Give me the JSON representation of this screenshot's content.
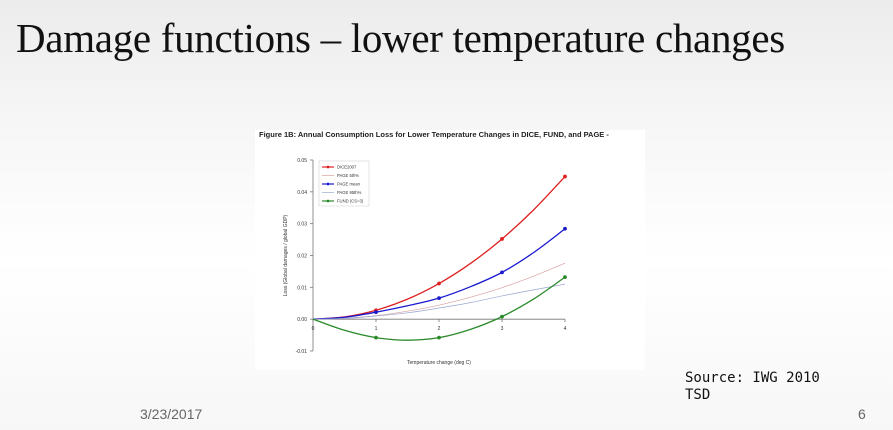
{
  "slide": {
    "title": "Damage functions – lower temperature changes",
    "source": "Source: IWG 2010 TSD",
    "date": "3/23/2017",
    "page_number": "6"
  },
  "chart_data": {
    "type": "line",
    "title": "Figure 1B: Annual Consumption Loss for Lower Temperature Changes in DICE, FUND, and PAGE -",
    "xlabel": "Temperature change (deg C)",
    "ylabel": "Loss (Global damages / global GDP)",
    "xlim": [
      0,
      4
    ],
    "ylim": [
      -0.01,
      0.05
    ],
    "x_ticks": [
      0,
      1,
      2,
      3,
      4
    ],
    "x_tick_labels": [
      "0",
      "1",
      "2",
      "3",
      "4"
    ],
    "y_ticks": [
      -0.01,
      0.0,
      0.01,
      0.02,
      0.03,
      0.04,
      0.05
    ],
    "y_tick_labels": [
      "-0.01",
      "0.00",
      "0.01",
      "0.02",
      "0.03",
      "0.04",
      "0.05"
    ],
    "grid": false,
    "legend_position": "top-left",
    "series": [
      {
        "name": "DICE2007",
        "color": "#e02020",
        "style": "solid",
        "markers": true,
        "x": [
          0,
          0.5,
          1,
          1.5,
          2,
          2.5,
          3,
          3.5,
          4
        ],
        "y": [
          0.0,
          0.0007,
          0.0028,
          0.0063,
          0.0112,
          0.0175,
          0.0252,
          0.0343,
          0.0448
        ]
      },
      {
        "name": "PAGE 5th%",
        "color": "#d9a0a0",
        "style": "thin",
        "markers": false,
        "x": [
          0,
          0.5,
          1,
          1.5,
          2,
          2.5,
          3,
          3.5,
          4
        ],
        "y": [
          0.0,
          0.0003,
          0.0011,
          0.0025,
          0.0044,
          0.0069,
          0.0099,
          0.0135,
          0.0176
        ]
      },
      {
        "name": "PAGE mean",
        "color": "#1a1ad0",
        "style": "solid",
        "markers": true,
        "x": [
          0,
          0.5,
          1,
          1.5,
          2,
          2.5,
          3,
          3.5,
          4
        ],
        "y": [
          0.0,
          0.0006,
          0.0022,
          0.0042,
          0.0066,
          0.0102,
          0.0147,
          0.0209,
          0.0284
        ]
      },
      {
        "name": "PAGE 95th%",
        "color": "#9aa6cf",
        "style": "thin",
        "markers": false,
        "x": [
          0,
          0.5,
          1,
          1.5,
          2,
          2.5,
          3,
          3.5,
          4
        ],
        "y": [
          0.0,
          0.0002,
          0.001,
          0.002,
          0.0035,
          0.0052,
          0.0073,
          0.0092,
          0.011
        ]
      },
      {
        "name": "FUND (CS=3)",
        "color": "#2a8a2a",
        "style": "solid",
        "markers": true,
        "x": [
          0,
          0.5,
          1,
          1.5,
          2,
          2.5,
          3,
          3.5,
          4
        ],
        "y": [
          0.0,
          -0.0035,
          -0.0058,
          -0.0066,
          -0.0058,
          -0.0032,
          0.0008,
          0.0063,
          0.0132
        ]
      }
    ],
    "markers_at_x": [
      1,
      2,
      3,
      4
    ]
  }
}
